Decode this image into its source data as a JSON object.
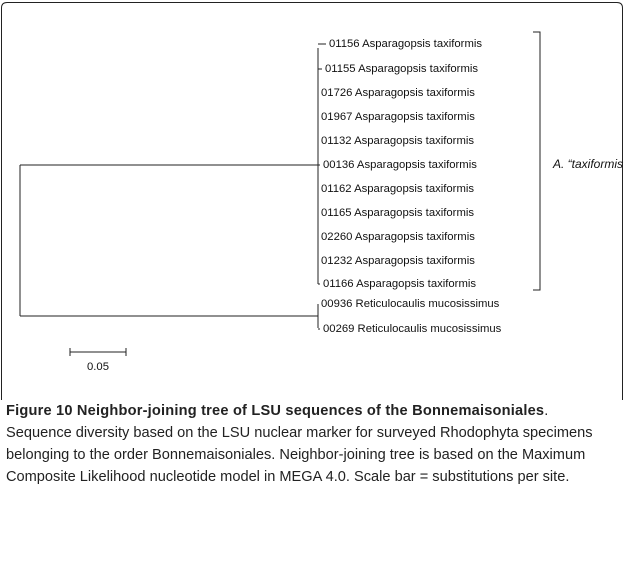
{
  "tree": {
    "leaves": [
      "01156 Asparagopsis taxiformis",
      "01155 Asparagopsis taxiformis",
      "01726 Asparagopsis taxiformis",
      "01967 Asparagopsis taxiformis",
      "01132 Asparagopsis taxiformis",
      "00136 Asparagopsis taxiformis",
      "01162 Asparagopsis taxiformis",
      "01165 Asparagopsis taxiformis",
      "02260 Asparagopsis taxiformis",
      "01232 Asparagopsis taxiformis",
      "01166 Asparagopsis taxiformis",
      "00936 Reticulocaulis mucosissimus",
      "00269 Reticulocaulis mucosissimus"
    ],
    "clade_label": "A. “taxiformis”",
    "scale_label": "0.05"
  },
  "caption": {
    "title": "Figure 10 Neighbor-joining tree of LSU sequences of the Bonnemaisoniales",
    "text": ". Sequence diversity based on the LSU nuclear marker for surveyed Rhodophyta specimens belonging to the order Bonnemaisoniales. Neighbor-joining tree is based on the Maximum Composite Likelihood nucleotide model in MEGA 4.0. Scale bar = substitutions per site."
  }
}
